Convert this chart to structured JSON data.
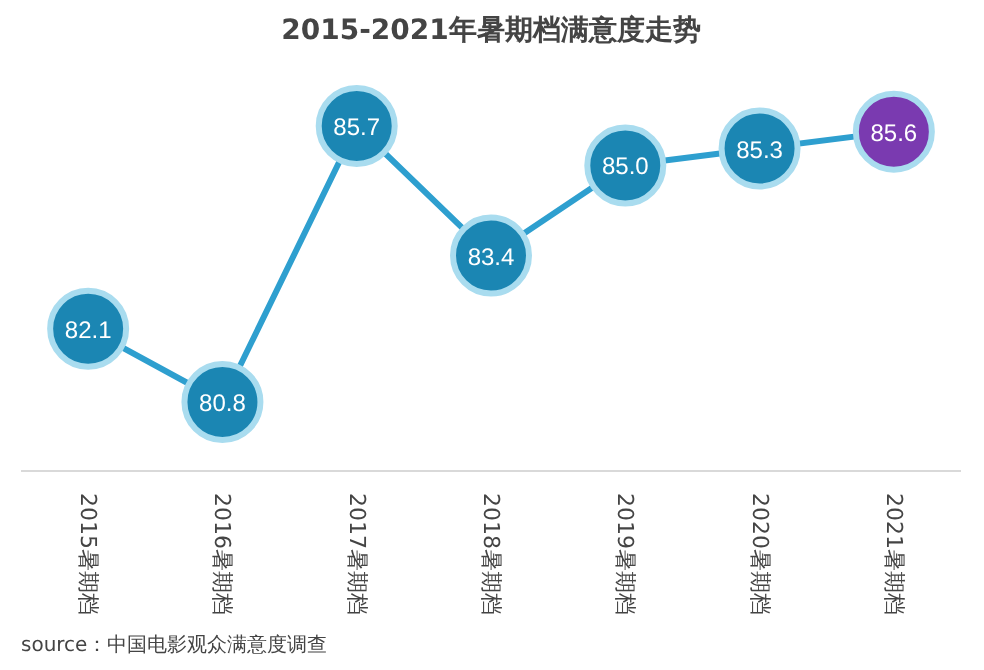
{
  "chart_data": {
    "type": "line",
    "title": "2015-2021年暑期档满意度走势",
    "categories": [
      "2015暑期档",
      "2016暑期档",
      "2017暑期档",
      "2018暑期档",
      "2019暑期档",
      "2020暑期档",
      "2021暑期档"
    ],
    "values": [
      82.1,
      80.8,
      85.7,
      83.4,
      85.0,
      85.3,
      85.6
    ],
    "value_labels": [
      "82.1",
      "80.8",
      "85.7",
      "83.4",
      "85.0",
      "85.3",
      "85.6"
    ],
    "color": "#2e9fcf",
    "colors": [
      "#1b86b3",
      "#1b86b3",
      "#1b86b3",
      "#1b86b3",
      "#1b86b3",
      "#1b86b3",
      "#7a3ab0"
    ],
    "marker": "circle",
    "grid": false,
    "annotations": [
      "source：中国电影观众满意度调查"
    ]
  }
}
